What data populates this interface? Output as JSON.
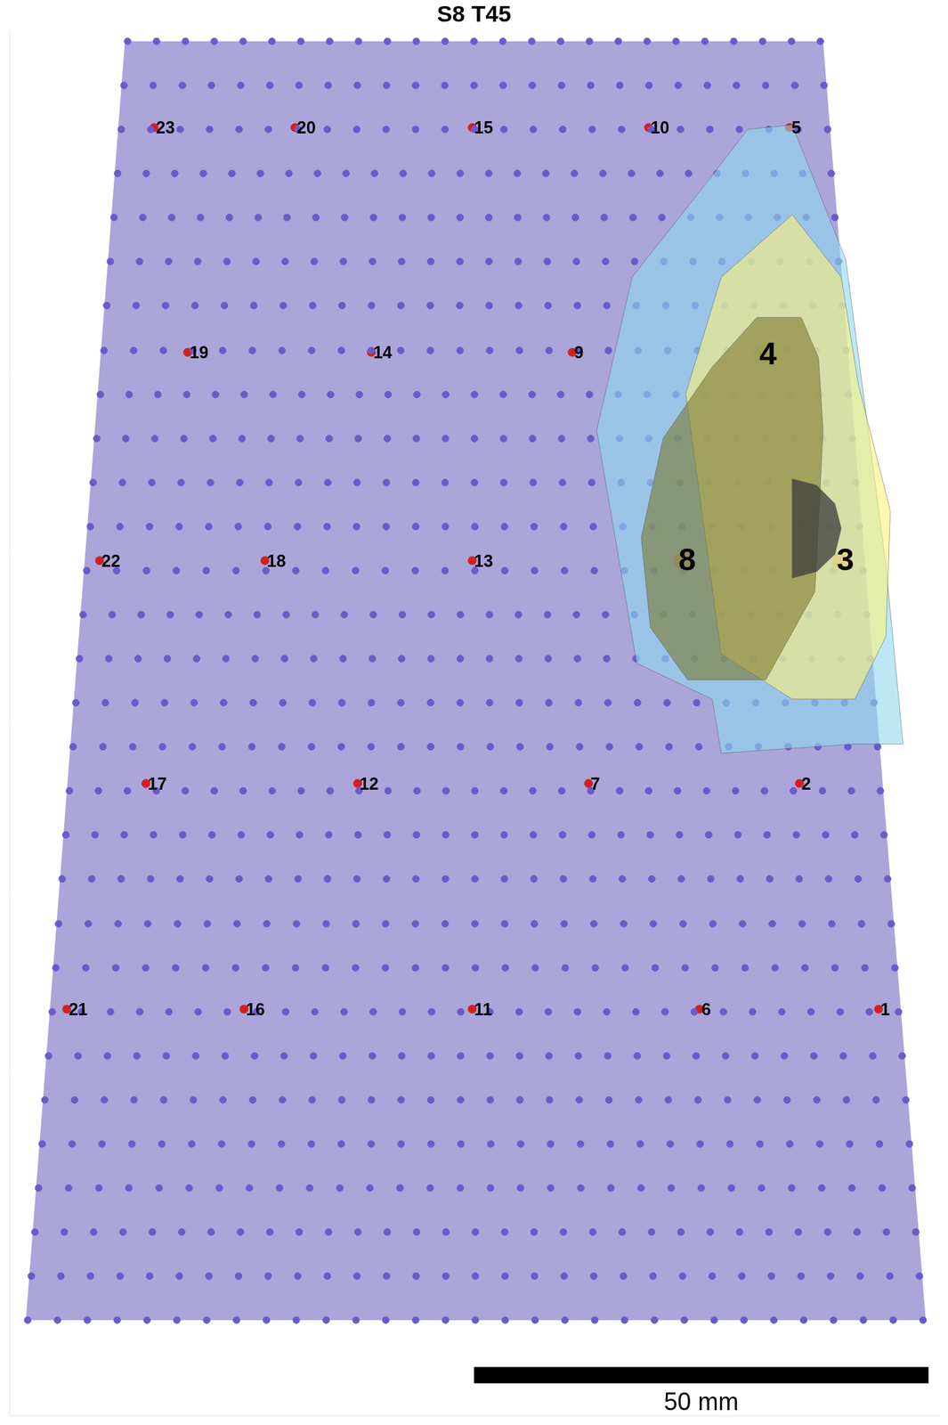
{
  "chart_data": {
    "type": "scatter",
    "title": "S8 T45",
    "xlim": [
      0,
      102.2
    ],
    "ylim": [
      0,
      151
    ],
    "tick_labels": false,
    "grid": false,
    "outline": [
      [
        12.7,
        149.8
      ],
      [
        89.5,
        149.8
      ],
      [
        100.8,
        10.4
      ],
      [
        1.8,
        10.4
      ]
    ],
    "grid_rows": [
      {
        "y": 149.8,
        "x_start": 13.0,
        "x_end": 89.2,
        "n": 25
      },
      {
        "y": 145.0,
        "x_start": 12.6,
        "x_end": 89.6,
        "n": 25
      },
      {
        "y": 140.2,
        "x_start": 12.3,
        "x_end": 90.0,
        "n": 25
      },
      {
        "y": 135.4,
        "x_start": 11.9,
        "x_end": 90.4,
        "n": 26
      },
      {
        "y": 130.6,
        "x_start": 11.5,
        "x_end": 90.8,
        "n": 26
      },
      {
        "y": 125.8,
        "x_start": 11.1,
        "x_end": 91.2,
        "n": 26
      },
      {
        "y": 121.0,
        "x_start": 10.7,
        "x_end": 91.6,
        "n": 26
      },
      {
        "y": 116.1,
        "x_start": 10.4,
        "x_end": 92.0,
        "n": 26
      },
      {
        "y": 111.3,
        "x_start": 10.0,
        "x_end": 92.3,
        "n": 27
      },
      {
        "y": 106.5,
        "x_start": 9.6,
        "x_end": 92.7,
        "n": 27
      },
      {
        "y": 101.7,
        "x_start": 9.2,
        "x_end": 93.1,
        "n": 27
      },
      {
        "y": 96.9,
        "x_start": 8.9,
        "x_end": 93.5,
        "n": 27
      },
      {
        "y": 92.1,
        "x_start": 8.5,
        "x_end": 93.9,
        "n": 27
      },
      {
        "y": 87.3,
        "x_start": 8.1,
        "x_end": 94.3,
        "n": 28
      },
      {
        "y": 82.5,
        "x_start": 7.7,
        "x_end": 94.7,
        "n": 28
      },
      {
        "y": 77.7,
        "x_start": 7.3,
        "x_end": 95.1,
        "n": 28
      },
      {
        "y": 72.9,
        "x_start": 7.0,
        "x_end": 95.5,
        "n": 28
      },
      {
        "y": 68.1,
        "x_start": 6.6,
        "x_end": 95.8,
        "n": 29
      },
      {
        "y": 63.3,
        "x_start": 6.2,
        "x_end": 96.2,
        "n": 29
      },
      {
        "y": 58.5,
        "x_start": 5.8,
        "x_end": 96.6,
        "n": 29
      },
      {
        "y": 53.6,
        "x_start": 5.4,
        "x_end": 97.0,
        "n": 29
      },
      {
        "y": 48.8,
        "x_start": 5.1,
        "x_end": 97.4,
        "n": 29
      },
      {
        "y": 44.0,
        "x_start": 4.7,
        "x_end": 97.8,
        "n": 30
      },
      {
        "y": 39.2,
        "x_start": 4.3,
        "x_end": 98.2,
        "n": 30
      },
      {
        "y": 34.4,
        "x_start": 3.9,
        "x_end": 98.6,
        "n": 30
      },
      {
        "y": 29.6,
        "x_start": 3.6,
        "x_end": 99.0,
        "n": 30
      },
      {
        "y": 24.8,
        "x_start": 3.2,
        "x_end": 99.3,
        "n": 30
      },
      {
        "y": 20.0,
        "x_start": 2.8,
        "x_end": 99.7,
        "n": 31
      },
      {
        "y": 15.2,
        "x_start": 2.4,
        "x_end": 100.1,
        "n": 31
      },
      {
        "y": 10.4,
        "x_start": 2.0,
        "x_end": 100.5,
        "n": 31
      }
    ],
    "regions": [
      {
        "color": "#8fd8f0",
        "points": [
          [
            81.2,
            140.2
          ],
          [
            86.1,
            140.7
          ],
          [
            92.0,
            126.0
          ],
          [
            96.4,
            92.8
          ],
          [
            98.3,
            73.2
          ],
          [
            93.0,
            73.2
          ],
          [
            78.3,
            72.2
          ],
          [
            77.3,
            78.1
          ],
          [
            69.0,
            82.0
          ],
          [
            64.6,
            107.4
          ],
          [
            68.5,
            124.1
          ],
          [
            76.3,
            133.9
          ]
        ]
      },
      {
        "color": "#fff27a",
        "points": [
          [
            86.1,
            130.9
          ],
          [
            91.5,
            124.1
          ],
          [
            93.4,
            112.3
          ],
          [
            96.9,
            98.6
          ],
          [
            96.4,
            84.9
          ],
          [
            93.0,
            78.1
          ],
          [
            86.1,
            78.1
          ],
          [
            78.3,
            83.0
          ],
          [
            74.4,
            111.4
          ],
          [
            78.3,
            124.1
          ]
        ]
      },
      {
        "color": "#7d7a2e",
        "points": [
          [
            82.2,
            119.7
          ],
          [
            87.1,
            119.7
          ],
          [
            89.0,
            115.3
          ],
          [
            89.5,
            107.4
          ],
          [
            88.6,
            89.8
          ],
          [
            83.2,
            80.2
          ],
          [
            74.6,
            80.2
          ],
          [
            70.5,
            85.9
          ],
          [
            69.5,
            95.7
          ],
          [
            71.9,
            106.5
          ],
          [
            77.3,
            114.3
          ]
        ]
      },
      {
        "color": "#3a3a3a",
        "points": [
          [
            86.1,
            102.1
          ],
          [
            88.8,
            101.4
          ],
          [
            90.8,
            99.4
          ],
          [
            91.5,
            96.7
          ],
          [
            90.8,
            93.9
          ],
          [
            88.8,
            92.0
          ],
          [
            86.1,
            91.3
          ]
        ]
      }
    ],
    "series": [
      {
        "color": "#d41f1f",
        "marker": "dot",
        "labels": [
          "1",
          "2",
          "5",
          "6",
          "7",
          "9",
          "10",
          "11",
          "12",
          "13",
          "14",
          "15",
          "16",
          "17",
          "18",
          "19",
          "20",
          "21",
          "22",
          "23"
        ],
        "x": [
          95.6,
          86.9,
          85.8,
          75.9,
          63.7,
          61.9,
          70.3,
          50.9,
          38.3,
          50.9,
          39.8,
          50.9,
          25.8,
          15.0,
          28.1,
          19.6,
          31.4,
          6.3,
          9.9,
          15.9
        ],
        "y": [
          44.3,
          68.9,
          140.4,
          44.3,
          68.9,
          115.9,
          140.4,
          44.3,
          68.9,
          93.2,
          115.9,
          140.4,
          44.3,
          68.9,
          93.2,
          115.9,
          140.4,
          44.3,
          93.2,
          140.4
        ]
      },
      {
        "color": "#f2501c",
        "marker": "large",
        "labels": [
          "3",
          "4",
          "8"
        ],
        "x": [
          91.5,
          83.0,
          74.1
        ],
        "y": [
          93.2,
          115.7,
          93.2
        ]
      }
    ],
    "scale_bar": {
      "x": 51.1,
      "y": 4.4,
      "length": 50,
      "label": "50 mm"
    }
  }
}
